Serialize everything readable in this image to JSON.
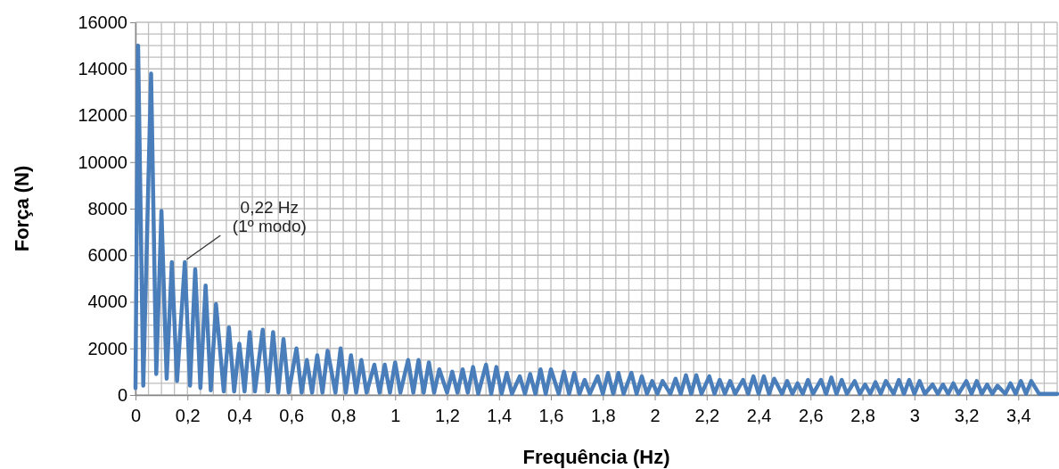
{
  "chart_data": {
    "type": "line",
    "xlabel": "Frequência (Hz)",
    "ylabel": "Força (N)",
    "xlim": [
      0,
      3.55
    ],
    "ylim": [
      0,
      16000
    ],
    "xticks": [
      0,
      {
        "value": 0.05,
        "label": null
      },
      {
        "value": 0.1,
        "label": null
      },
      {
        "value": 0.15,
        "label": null
      },
      {
        "value": 0.2,
        "label": "0,2"
      },
      {
        "value": 0.25,
        "label": null
      },
      {
        "value": 0.3,
        "label": null
      },
      {
        "value": 0.35,
        "label": null
      },
      {
        "value": 0.4,
        "label": "0,4"
      },
      {
        "value": 0.45,
        "label": null
      },
      {
        "value": 0.5,
        "label": null
      },
      {
        "value": 0.55,
        "label": null
      },
      {
        "value": 0.6,
        "label": "0,6"
      },
      {
        "value": 0.65,
        "label": null
      },
      {
        "value": 0.7,
        "label": null
      },
      {
        "value": 0.75,
        "label": null
      },
      {
        "value": 0.8,
        "label": "0,8"
      },
      {
        "value": 0.85,
        "label": null
      },
      {
        "value": 0.9,
        "label": null
      },
      {
        "value": 0.95,
        "label": null
      },
      1,
      {
        "value": 1.05,
        "label": null
      },
      {
        "value": 1.1,
        "label": null
      },
      {
        "value": 1.15,
        "label": null
      },
      {
        "value": 1.2,
        "label": "1,2"
      },
      {
        "value": 1.25,
        "label": null
      },
      {
        "value": 1.3,
        "label": null
      },
      {
        "value": 1.35,
        "label": null
      },
      {
        "value": 1.4,
        "label": "1,4"
      },
      {
        "value": 1.45,
        "label": null
      },
      {
        "value": 1.5,
        "label": null
      },
      {
        "value": 1.55,
        "label": null
      },
      {
        "value": 1.6,
        "label": "1,6"
      },
      {
        "value": 1.65,
        "label": null
      },
      {
        "value": 1.7,
        "label": null
      },
      {
        "value": 1.75,
        "label": null
      },
      {
        "value": 1.8,
        "label": "1,8"
      },
      {
        "value": 1.85,
        "label": null
      },
      {
        "value": 1.9,
        "label": null
      },
      {
        "value": 1.95,
        "label": null
      },
      2,
      {
        "value": 2.05,
        "label": null
      },
      {
        "value": 2.1,
        "label": null
      },
      {
        "value": 2.15,
        "label": null
      },
      {
        "value": 2.2,
        "label": "2,2"
      },
      {
        "value": 2.25,
        "label": null
      },
      {
        "value": 2.3,
        "label": null
      },
      {
        "value": 2.35,
        "label": null
      },
      {
        "value": 2.4,
        "label": "2,4"
      },
      {
        "value": 2.45,
        "label": null
      },
      {
        "value": 2.5,
        "label": null
      },
      {
        "value": 2.55,
        "label": null
      },
      {
        "value": 2.6,
        "label": "2,6"
      },
      {
        "value": 2.65,
        "label": null
      },
      {
        "value": 2.7,
        "label": null
      },
      {
        "value": 2.75,
        "label": null
      },
      {
        "value": 2.8,
        "label": "2,8"
      },
      {
        "value": 2.85,
        "label": null
      },
      {
        "value": 2.9,
        "label": null
      },
      {
        "value": 2.95,
        "label": null
      },
      3,
      {
        "value": 3.05,
        "label": null
      },
      {
        "value": 3.1,
        "label": null
      },
      {
        "value": 3.15,
        "label": null
      },
      {
        "value": 3.2,
        "label": "3,2"
      },
      {
        "value": 3.25,
        "label": null
      },
      {
        "value": 3.3,
        "label": null
      },
      {
        "value": 3.35,
        "label": null
      },
      {
        "value": 3.4,
        "label": "3,4"
      },
      {
        "value": 3.45,
        "label": null
      },
      {
        "value": 3.5,
        "label": null
      },
      {
        "value": 3.55,
        "label": null
      }
    ],
    "yticks": [
      0,
      {
        "value": 500,
        "label": null
      },
      {
        "value": 1000,
        "label": null
      },
      {
        "value": 1500,
        "label": null
      },
      2000,
      {
        "value": 2500,
        "label": null
      },
      {
        "value": 3000,
        "label": null
      },
      {
        "value": 3500,
        "label": null
      },
      4000,
      {
        "value": 4500,
        "label": null
      },
      {
        "value": 5000,
        "label": null
      },
      {
        "value": 5500,
        "label": null
      },
      6000,
      {
        "value": 6500,
        "label": null
      },
      {
        "value": 7000,
        "label": null
      },
      {
        "value": 7500,
        "label": null
      },
      8000,
      {
        "value": 8500,
        "label": null
      },
      {
        "value": 9000,
        "label": null
      },
      {
        "value": 9500,
        "label": null
      },
      10000,
      {
        "value": 10500,
        "label": null
      },
      {
        "value": 11000,
        "label": null
      },
      {
        "value": 11500,
        "label": null
      },
      12000,
      {
        "value": 12500,
        "label": null
      },
      {
        "value": 13000,
        "label": null
      },
      {
        "value": 13500,
        "label": null
      },
      14000,
      {
        "value": 14500,
        "label": null
      },
      {
        "value": 15000,
        "label": null
      },
      {
        "value": 15500,
        "label": null
      },
      16000
    ],
    "grid": true,
    "marker": "none",
    "line_style": "solid",
    "annotations": [
      {
        "text": "0,22 Hz\n(1º modo)",
        "x": 0.19,
        "y": 5700
      }
    ],
    "series": [
      {
        "color": "#4a7ebb",
        "x": [
          0,
          0.01,
          0.03,
          0.06,
          0.08,
          0.1,
          0.12,
          0.14,
          0.16,
          0.19,
          0.21,
          0.23,
          0.25,
          0.27,
          0.29,
          0.31,
          0.34,
          0.36,
          0.38,
          0.4,
          0.42,
          0.44,
          0.46,
          0.49,
          0.51,
          0.53,
          0.55,
          0.57,
          0.59,
          0.62,
          0.64,
          0.66,
          0.68,
          0.7,
          0.72,
          0.74,
          0.77,
          0.79,
          0.81,
          0.83,
          0.85,
          0.87,
          0.89,
          0.92,
          0.94,
          0.96,
          0.98,
          1.0,
          1.02,
          1.05,
          1.07,
          1.09,
          1.11,
          1.13,
          1.15,
          1.17,
          1.2,
          1.22,
          1.24,
          1.26,
          1.28,
          1.3,
          1.32,
          1.35,
          1.37,
          1.39,
          1.41,
          1.43,
          1.45,
          1.48,
          1.5,
          1.52,
          1.54,
          1.56,
          1.58,
          1.6,
          1.63,
          1.65,
          1.67,
          1.69,
          1.71,
          1.73,
          1.75,
          1.78,
          1.8,
          1.82,
          1.84,
          1.86,
          1.88,
          1.91,
          1.93,
          1.95,
          1.97,
          1.99,
          2.01,
          2.03,
          2.06,
          2.08,
          2.1,
          2.12,
          2.14,
          2.16,
          2.18,
          2.21,
          2.23,
          2.25,
          2.27,
          2.29,
          2.31,
          2.34,
          2.36,
          2.38,
          2.4,
          2.42,
          2.44,
          2.46,
          2.49,
          2.51,
          2.53,
          2.55,
          2.57,
          2.59,
          2.61,
          2.64,
          2.66,
          2.68,
          2.7,
          2.72,
          2.74,
          2.77,
          2.79,
          2.81,
          2.83,
          2.85,
          2.87,
          2.89,
          2.92,
          2.94,
          2.96,
          2.98,
          3.0,
          3.02,
          3.04,
          3.07,
          3.09,
          3.11,
          3.13,
          3.15,
          3.17,
          3.2,
          3.22,
          3.24,
          3.26,
          3.28,
          3.3,
          3.32,
          3.35,
          3.37,
          3.39,
          3.41,
          3.43,
          3.45,
          3.48,
          3.55
        ],
        "values": [
          300,
          15000,
          400,
          13800,
          900,
          7900,
          700,
          5700,
          600,
          5700,
          400,
          5400,
          300,
          4700,
          200,
          3900,
          150,
          2900,
          150,
          2200,
          150,
          2700,
          150,
          2800,
          150,
          2700,
          100,
          2400,
          100,
          2000,
          100,
          1500,
          100,
          1700,
          100,
          1900,
          100,
          2000,
          100,
          1700,
          100,
          1500,
          100,
          1300,
          100,
          1300,
          100,
          1400,
          100,
          1500,
          100,
          1500,
          100,
          1400,
          100,
          1100,
          100,
          1000,
          100,
          1100,
          100,
          1200,
          50,
          1300,
          50,
          1200,
          50,
          950,
          50,
          800,
          50,
          900,
          50,
          1100,
          50,
          1100,
          50,
          1000,
          50,
          950,
          50,
          650,
          50,
          800,
          50,
          950,
          50,
          950,
          50,
          950,
          50,
          800,
          50,
          600,
          50,
          600,
          50,
          700,
          50,
          850,
          50,
          850,
          50,
          800,
          50,
          650,
          50,
          600,
          50,
          650,
          50,
          800,
          50,
          800,
          50,
          700,
          50,
          600,
          50,
          500,
          50,
          650,
          50,
          650,
          50,
          750,
          50,
          650,
          50,
          600,
          50,
          450,
          50,
          550,
          50,
          600,
          50,
          650,
          50,
          650,
          50,
          600,
          50,
          450,
          50,
          450,
          50,
          500,
          50,
          600,
          50,
          600,
          50,
          450,
          50,
          400,
          50,
          500,
          50,
          600,
          50,
          600,
          50,
          50
        ]
      }
    ]
  }
}
